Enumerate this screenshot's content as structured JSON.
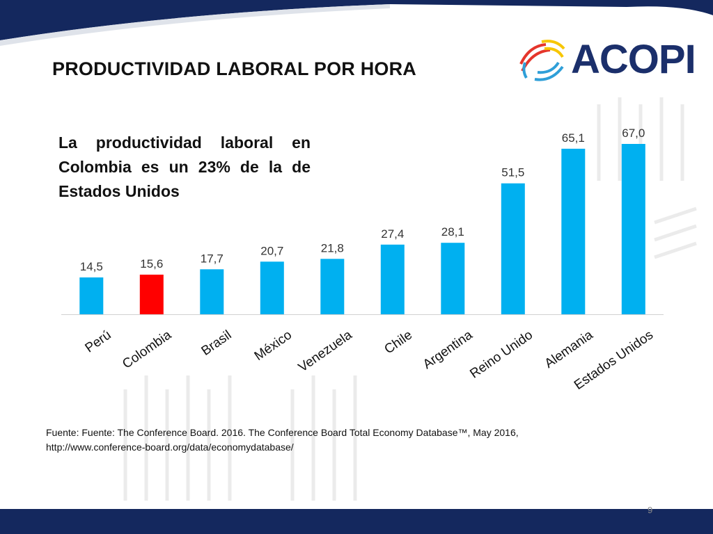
{
  "slide": {
    "title": "PRODUCTIVIDAD LABORAL POR HORA",
    "subtitle": "La productividad laboral en Colombia es un 23% de la de Estados Unidos",
    "logo_text": "ACOPI",
    "source_line1": "Fuente: Fuente: The Conference Board. 2016. The Conference Board Total Economy Database™, May 2016,",
    "source_line2": "http://www.conference-board.org/data/economydatabase/",
    "page_number": "9"
  },
  "colors": {
    "bar": "#00b0f0",
    "highlight": "#ff0000",
    "header_band": "#14285e",
    "footer_band": "#14285e"
  },
  "chart_data": {
    "type": "bar",
    "title": "",
    "xlabel": "",
    "ylabel": "",
    "categories": [
      "Perú",
      "Colombia",
      "Brasil",
      "México",
      "Venezuela",
      "Chile",
      "Argentina",
      "Reino Unido",
      "Alemania",
      "Estados Unidos"
    ],
    "values": [
      14.5,
      15.6,
      17.7,
      20.7,
      21.8,
      27.4,
      28.1,
      51.5,
      65.1,
      67.0
    ],
    "value_labels": [
      "14,5",
      "15,6",
      "17,7",
      "20,7",
      "21,8",
      "27,4",
      "28,1",
      "51,5",
      "65,1",
      "67,0"
    ],
    "highlight_category": "Colombia",
    "ylim": [
      0,
      67
    ],
    "grid": false,
    "legend": "none"
  }
}
